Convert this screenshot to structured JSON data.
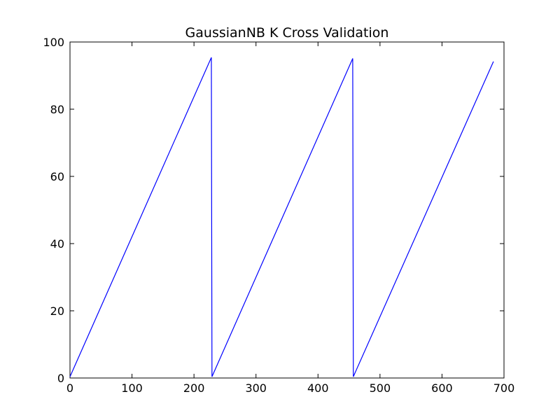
{
  "chart_data": {
    "type": "line",
    "title": "GaussianNB K Cross Validation",
    "xlabel": "",
    "ylabel": "",
    "xlim": [
      0,
      700
    ],
    "ylim": [
      0,
      100
    ],
    "x_ticks": [
      0,
      100,
      200,
      300,
      400,
      500,
      600,
      700
    ],
    "y_ticks": [
      0,
      20,
      40,
      60,
      80,
      100
    ],
    "grid": false,
    "legend": "none",
    "series": [
      {
        "color": "#0000ff",
        "x": [
          0,
          228,
          229,
          456,
          457,
          683
        ],
        "y": [
          0.4,
          95.4,
          0.4,
          95.1,
          0.4,
          94.2
        ]
      }
    ]
  }
}
